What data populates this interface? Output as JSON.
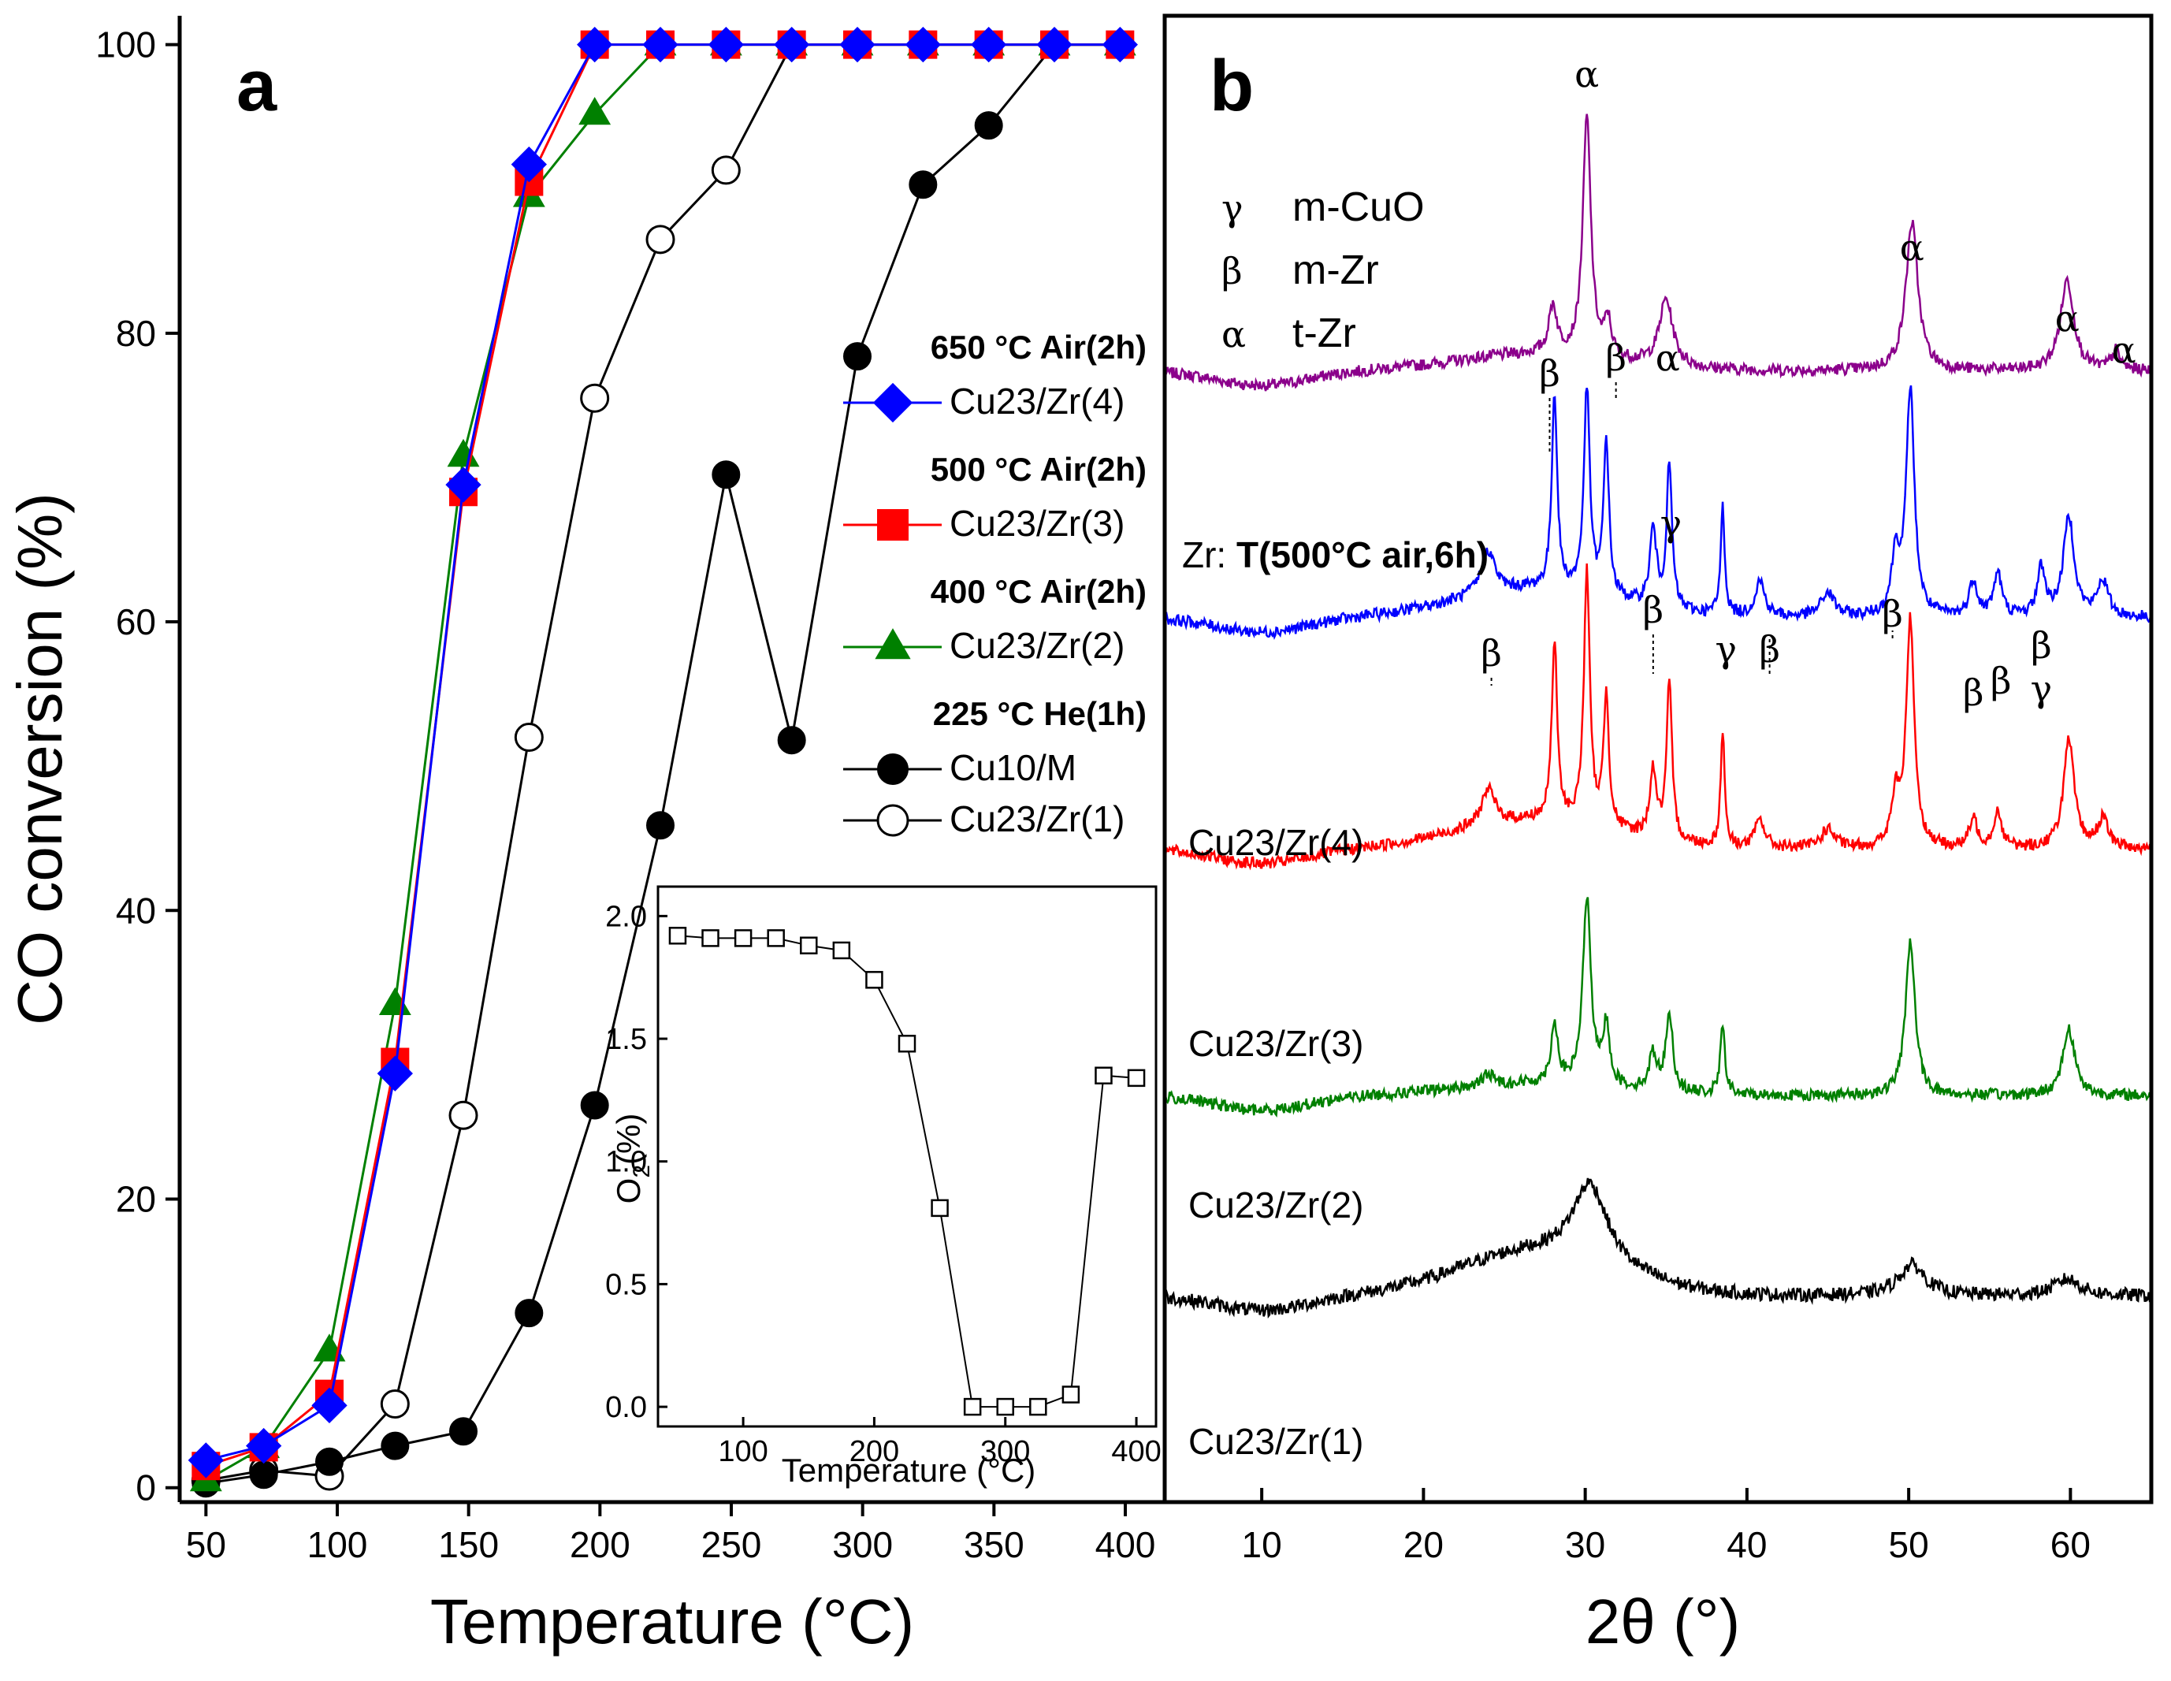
{
  "chart_data": [
    {
      "panel": "a",
      "type": "line",
      "xlabel": "Temperature (°C)",
      "ylabel": "CO conversion (%)",
      "xlim": [
        40,
        415
      ],
      "ylim": [
        -1,
        102
      ],
      "xticks": [
        50,
        100,
        150,
        200,
        250,
        300,
        350,
        400
      ],
      "yticks": [
        0,
        20,
        40,
        60,
        80,
        100
      ],
      "series": [
        {
          "key": "zr1",
          "name": "Cu23/Zr(1)",
          "group": "225 °C He(1h)",
          "color": "#000000",
          "marker": "circle-open",
          "x": [
            50,
            72,
            97,
            122,
            148,
            173,
            198,
            223,
            248,
            273,
            298,
            323,
            348,
            373,
            398
          ],
          "y": [
            0.5,
            1.2,
            0.8,
            5.8,
            25.8,
            52,
            75.5,
            86.5,
            91.3,
            100,
            100,
            100,
            100,
            100,
            100
          ]
        },
        {
          "key": "cu10",
          "name": "Cu10/M",
          "group": "225 °C He(1h)",
          "color": "#000000",
          "marker": "circle-filled",
          "x": [
            50,
            72,
            97,
            122,
            148,
            173,
            198,
            223,
            248,
            273,
            298,
            323,
            348,
            373,
            398
          ],
          "y": [
            0.3,
            0.9,
            1.8,
            2.9,
            3.9,
            12.1,
            26.5,
            45.9,
            70.2,
            51.8,
            78.4,
            90.3,
            94.4,
            100,
            100
          ]
        },
        {
          "key": "zr2",
          "name": "Cu23/Zr(2)",
          "group": "400 °C Air(2h)",
          "color": "#008000",
          "marker": "triangle",
          "x": [
            50,
            72,
            97,
            122,
            148,
            173,
            198,
            223,
            248,
            273,
            298,
            323,
            348,
            373,
            398
          ],
          "y": [
            0.5,
            2.8,
            9.5,
            33.5,
            71.5,
            89.5,
            95.2,
            100,
            100,
            100,
            100,
            100,
            100,
            100,
            100
          ]
        },
        {
          "key": "zr3",
          "name": "Cu23/Zr(3)",
          "group": "500 °C Air(2h)",
          "color": "#ff0000",
          "marker": "square",
          "x": [
            50,
            72,
            97,
            122,
            148,
            173,
            198,
            223,
            248,
            273,
            298,
            323,
            348,
            373,
            398
          ],
          "y": [
            1.5,
            2.8,
            6.5,
            29.5,
            69,
            90.5,
            100,
            100,
            100,
            100,
            100,
            100,
            100,
            100,
            100
          ]
        },
        {
          "key": "zr4",
          "name": "Cu23/Zr(4)",
          "group": "650 °C Air(2h)",
          "color": "#0000ff",
          "marker": "diamond",
          "x": [
            50,
            72,
            97,
            122,
            148,
            173,
            198,
            223,
            248,
            273,
            298,
            323,
            348,
            373,
            398
          ],
          "y": [
            1.9,
            2.9,
            5.7,
            28.7,
            69.5,
            91.7,
            100,
            100,
            100,
            100,
            100,
            100,
            100,
            100,
            100
          ]
        }
      ],
      "legend": [
        {
          "header": "650 °C Air(2h)",
          "entries": [
            {
              "series": "zr4",
              "label": "Cu23/Zr(4)"
            }
          ]
        },
        {
          "header": "500 °C Air(2h)",
          "entries": [
            {
              "series": "zr3",
              "label": "Cu23/Zr(3)"
            }
          ]
        },
        {
          "header": "400 °C Air(2h)",
          "entries": [
            {
              "series": "zr2",
              "label": "Cu23/Zr(2)"
            }
          ]
        },
        {
          "header": "225 °C He(1h)",
          "entries": [
            {
              "series": "cu10",
              "label": "Cu10/M"
            },
            {
              "series": "zr1",
              "label": "Cu23/Zr(1)"
            }
          ]
        }
      ],
      "inset": {
        "type": "line",
        "xlabel": "Temperature (°C)",
        "ylabel": "O2(%)",
        "xlim": [
          35,
          415
        ],
        "ylim": [
          -0.08,
          2.12
        ],
        "xticks": [
          100,
          200,
          300,
          400
        ],
        "yticks": [
          0.0,
          0.5,
          1.0,
          1.5,
          2.0
        ],
        "marker": "square-open",
        "x": [
          50,
          75,
          100,
          125,
          150,
          175,
          200,
          225,
          250,
          275,
          300,
          325,
          350,
          375,
          400
        ],
        "y": [
          1.92,
          1.91,
          1.91,
          1.91,
          1.88,
          1.86,
          1.74,
          1.48,
          0.81,
          0.0,
          0.0,
          0.0,
          0.05,
          1.35,
          1.34
        ]
      }
    },
    {
      "panel": "b",
      "type": "line",
      "xlabel": "2θ (°)",
      "xlim": [
        4,
        65
      ],
      "xticks": [
        10,
        20,
        30,
        40,
        50,
        60
      ],
      "phase_key": [
        {
          "symbol": "γ",
          "phase": "m-CuO"
        },
        {
          "symbol": "β",
          "phase": "m-Zr"
        },
        {
          "symbol": "α",
          "phase": "t-Zr"
        }
      ],
      "series": [
        {
          "name": "Zr: T(500°C air,6h)",
          "prefix": "Zr: ",
          "bold_part": "T(500°C air,6h)",
          "color": "#8b008b",
          "baseline": 0.32,
          "amplitude": 0.31,
          "peaks": [
            [
              28,
              0.2,
              0.3
            ],
            [
              30.1,
              1.0,
              0.3
            ],
            [
              31.4,
              0.15,
              0.25
            ],
            [
              35,
              0.28,
              0.5
            ],
            [
              50.2,
              0.62,
              0.45
            ],
            [
              59.8,
              0.38,
              0.5
            ],
            [
              62.8,
              0.08,
              0.3
            ]
          ],
          "hump": 0.07
        },
        {
          "name": "Cu23/Zr(4)",
          "color": "#0000ff",
          "baseline": 0.0,
          "amplitude": 0.31,
          "peaks": [
            [
              24,
              0.18,
              0.5
            ],
            [
              28.1,
              0.82,
              0.2
            ],
            [
              30.1,
              0.85,
              0.22
            ],
            [
              31.3,
              0.65,
              0.2
            ],
            [
              34.2,
              0.32,
              0.25
            ],
            [
              35.2,
              0.6,
              0.2
            ],
            [
              38.5,
              0.45,
              0.15
            ],
            [
              40.8,
              0.15,
              0.35
            ],
            [
              45,
              0.1,
              0.5
            ],
            [
              49.2,
              0.25,
              0.3
            ],
            [
              50.1,
              0.95,
              0.3
            ],
            [
              54,
              0.15,
              0.3
            ],
            [
              55.5,
              0.18,
              0.3
            ],
            [
              58.2,
              0.2,
              0.3
            ],
            [
              59.9,
              0.42,
              0.4
            ],
            [
              62,
              0.15,
              0.4
            ]
          ],
          "hump": 0.12
        },
        {
          "name": "Cu23/Zr(3)",
          "color": "#ff0000",
          "baseline": -0.3,
          "amplitude": 0.31,
          "peaks": [
            [
              24,
              0.15,
              0.5
            ],
            [
              28.1,
              0.75,
              0.2
            ],
            [
              30.1,
              1.05,
              0.22
            ],
            [
              31.3,
              0.55,
              0.2
            ],
            [
              34.2,
              0.28,
              0.25
            ],
            [
              35.2,
              0.65,
              0.2
            ],
            [
              38.5,
              0.48,
              0.15
            ],
            [
              40.8,
              0.12,
              0.35
            ],
            [
              45,
              0.08,
              0.5
            ],
            [
              49.2,
              0.2,
              0.3
            ],
            [
              50.1,
              0.95,
              0.3
            ],
            [
              54,
              0.12,
              0.3
            ],
            [
              55.5,
              0.15,
              0.3
            ],
            [
              59.9,
              0.45,
              0.4
            ],
            [
              62,
              0.12,
              0.4
            ]
          ],
          "hump": 0.12
        },
        {
          "name": "Cu23/Zr(2)",
          "color": "#008000",
          "baseline": -0.62,
          "amplitude": 0.31,
          "peaks": [
            [
              24,
              0.05,
              0.4
            ],
            [
              28.1,
              0.25,
              0.25
            ],
            [
              30.1,
              0.78,
              0.3
            ],
            [
              31.3,
              0.25,
              0.25
            ],
            [
              34.2,
              0.15,
              0.3
            ],
            [
              35.2,
              0.33,
              0.25
            ],
            [
              38.5,
              0.28,
              0.18
            ],
            [
              50.1,
              0.65,
              0.35
            ],
            [
              59.9,
              0.28,
              0.45
            ]
          ],
          "hump": 0.05
        },
        {
          "name": "Cu23/Zr(1)",
          "color": "#000000",
          "baseline": -0.88,
          "amplitude": 0.31,
          "peaks": [
            [
              30.3,
              0.33,
              1.3
            ],
            [
              50.2,
              0.13,
              1.0
            ],
            [
              59.8,
              0.07,
              1.0
            ]
          ],
          "hump": 0.18
        }
      ],
      "annotations": [
        {
          "text": "α",
          "x": 30.1
        },
        {
          "text": "α",
          "x": 50.2
        },
        {
          "text": "α",
          "x": 59.8
        },
        {
          "text": "α",
          "x": 63.3
        },
        {
          "text": "α",
          "x": 35.1
        },
        {
          "text": "β",
          "x": 27.8
        },
        {
          "text": "β",
          "x": 31.9
        },
        {
          "text": "γ",
          "x": 35.3
        },
        {
          "text": "β",
          "x": 24.2
        },
        {
          "text": "β",
          "x": 34.2
        },
        {
          "text": "γ",
          "x": 38.7
        },
        {
          "text": "β",
          "x": 41.4
        },
        {
          "text": "β",
          "x": 49.0
        },
        {
          "text": "β",
          "x": 54.0
        },
        {
          "text": "β",
          "x": 55.7
        },
        {
          "text": "β",
          "x": 58.2
        },
        {
          "text": "γ",
          "x": 58.2
        }
      ]
    }
  ],
  "labels": {
    "panel_a": "a",
    "panel_b": "b"
  }
}
